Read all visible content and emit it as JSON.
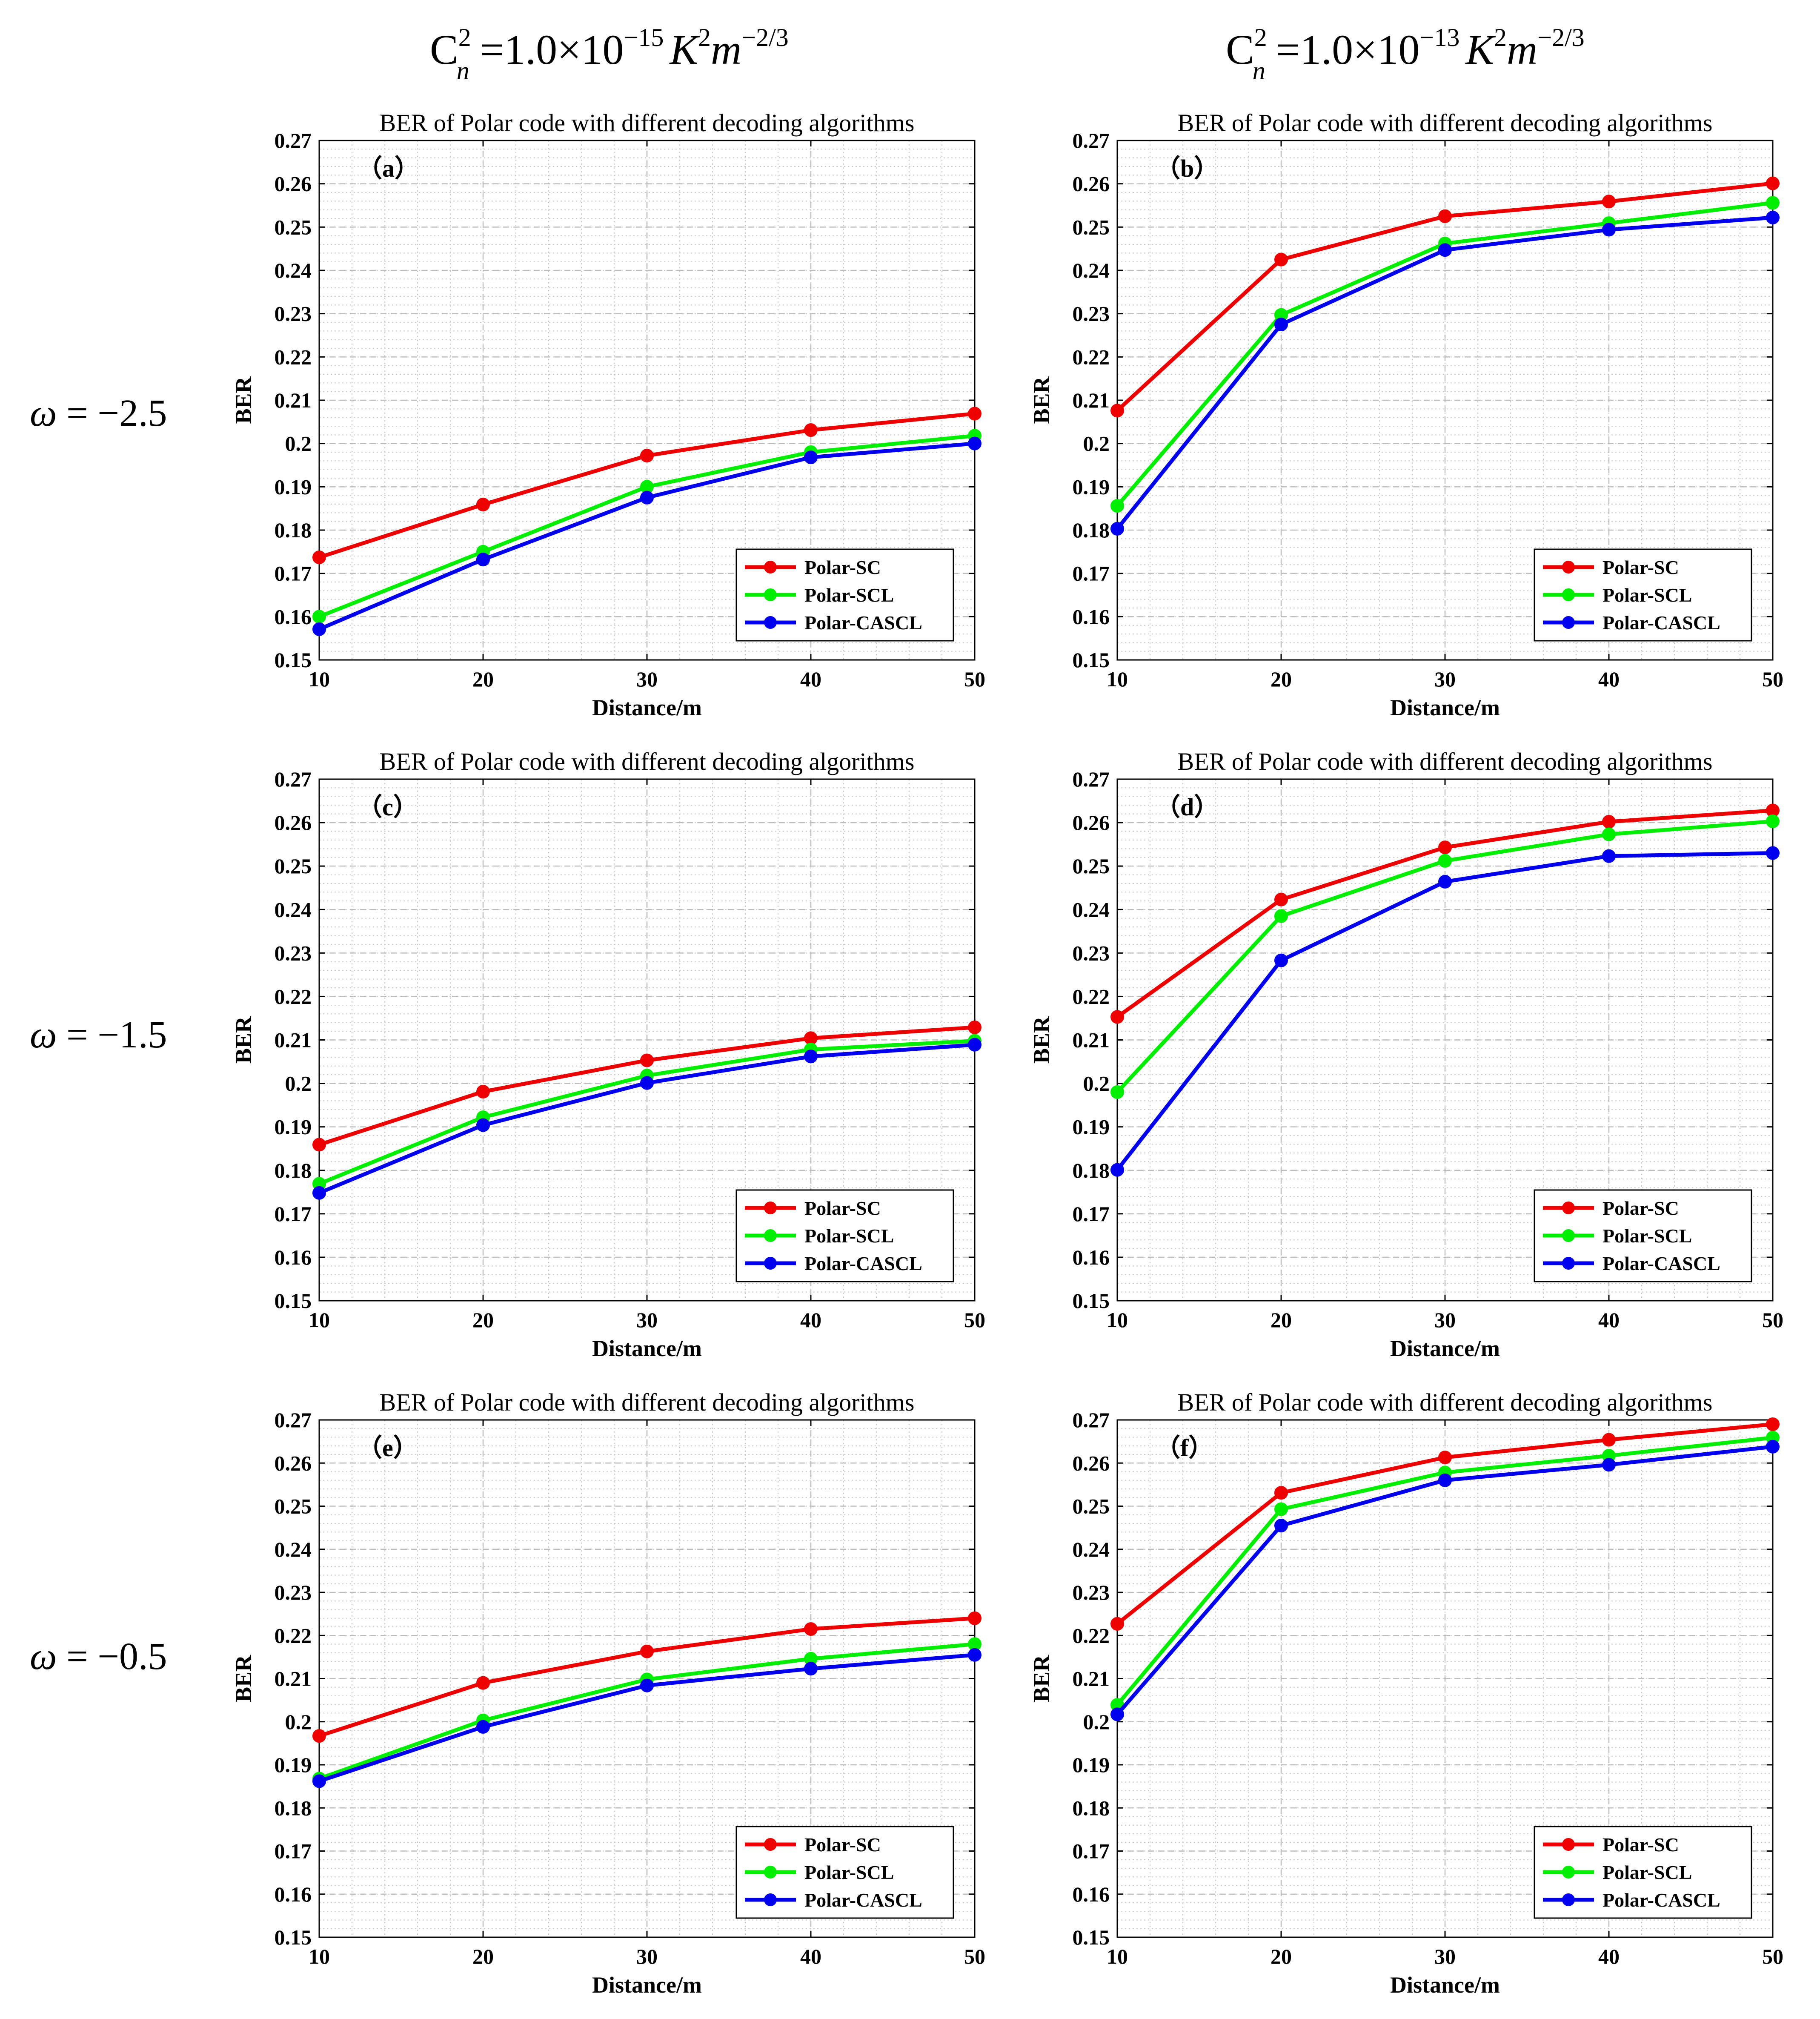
{
  "column_headers": [
    {
      "base": "C",
      "sup": "2",
      "sub": "n",
      "eq": " =1.0×10",
      "exp": "−15",
      "k": "K",
      "k_sup": "2",
      "m": "m",
      "m_sup": "−2/3"
    },
    {
      "base": "C",
      "sup": "2",
      "sub": "n",
      "eq": " =1.0×10",
      "exp": "−13",
      "k": "K",
      "k_sup": "2",
      "m": "m",
      "m_sup": "−2/3"
    }
  ],
  "row_labels": [
    {
      "symbol": "ω",
      "value": " = −2.5"
    },
    {
      "symbol": "ω",
      "value": " = −1.5"
    },
    {
      "symbol": "ω",
      "value": " = −0.5"
    }
  ],
  "colors": {
    "Polar-SC": "#ee0000",
    "Polar-SCL": "#00ee00",
    "Polar-CASCL": "#0000ee",
    "axis": "#000000",
    "grid": "#c8c8c8"
  },
  "chart_data": [
    {
      "type": "line",
      "panel_label": "（a）",
      "title": "BER of Polar code with different decoding algorithms",
      "xlabel": "Distance/m",
      "ylabel": "BER",
      "x": [
        10,
        20,
        30,
        40,
        50
      ],
      "xlim": [
        10,
        50
      ],
      "ylim": [
        0.15,
        0.27
      ],
      "xticks": [
        "10",
        "20",
        "30",
        "40",
        "50"
      ],
      "yticks": [
        "0.15",
        "0.16",
        "0.17",
        "0.18",
        "0.19",
        "0.2",
        "0.21",
        "0.22",
        "0.23",
        "0.24",
        "0.25",
        "0.26",
        "0.27"
      ],
      "legend_position": "bottom-right",
      "series": [
        {
          "name": "Polar-SC",
          "values": [
            0.1737,
            0.1859,
            0.1972,
            0.2031,
            0.2069
          ]
        },
        {
          "name": "Polar-SCL",
          "values": [
            0.16,
            0.175,
            0.19,
            0.198,
            0.2018
          ]
        },
        {
          "name": "Polar-CASCL",
          "values": [
            0.1571,
            0.1732,
            0.1875,
            0.1968,
            0.2
          ]
        }
      ]
    },
    {
      "type": "line",
      "panel_label": "（b）",
      "title": "BER of Polar code with different decoding algorithms",
      "xlabel": "Distance/m",
      "ylabel": "BER",
      "x": [
        10,
        20,
        30,
        40,
        50
      ],
      "xlim": [
        10,
        50
      ],
      "ylim": [
        0.15,
        0.27
      ],
      "xticks": [
        "10",
        "20",
        "30",
        "40",
        "50"
      ],
      "yticks": [
        "0.15",
        "0.16",
        "0.17",
        "0.18",
        "0.19",
        "0.2",
        "0.21",
        "0.22",
        "0.23",
        "0.24",
        "0.25",
        "0.26",
        "0.27"
      ],
      "legend_position": "bottom-right",
      "series": [
        {
          "name": "Polar-SC",
          "values": [
            0.2076,
            0.2425,
            0.2525,
            0.2559,
            0.2601
          ]
        },
        {
          "name": "Polar-SCL",
          "values": [
            0.1856,
            0.2297,
            0.2462,
            0.2509,
            0.2556
          ]
        },
        {
          "name": "Polar-CASCL",
          "values": [
            0.1803,
            0.2275,
            0.2447,
            0.2494,
            0.2522
          ]
        }
      ]
    },
    {
      "type": "line",
      "panel_label": "（c）",
      "title": "BER of Polar code with different decoding algorithms",
      "xlabel": "Distance/m",
      "ylabel": "BER",
      "x": [
        10,
        20,
        30,
        40,
        50
      ],
      "xlim": [
        10,
        50
      ],
      "ylim": [
        0.15,
        0.27
      ],
      "xticks": [
        "10",
        "20",
        "30",
        "40",
        "50"
      ],
      "yticks": [
        "0.15",
        "0.16",
        "0.17",
        "0.18",
        "0.19",
        "0.2",
        "0.21",
        "0.22",
        "0.23",
        "0.24",
        "0.25",
        "0.26",
        "0.27"
      ],
      "legend_position": "bottom-right",
      "series": [
        {
          "name": "Polar-SC",
          "values": [
            0.1859,
            0.1981,
            0.2053,
            0.2104,
            0.2129
          ]
        },
        {
          "name": "Polar-SCL",
          "values": [
            0.1769,
            0.1922,
            0.2018,
            0.2078,
            0.2098
          ]
        },
        {
          "name": "Polar-CASCL",
          "values": [
            0.1748,
            0.1904,
            0.2001,
            0.2062,
            0.2089
          ]
        }
      ]
    },
    {
      "type": "line",
      "panel_label": "（d）",
      "title": "BER of Polar code with different decoding algorithms",
      "xlabel": "Distance/m",
      "ylabel": "BER",
      "x": [
        10,
        20,
        30,
        40,
        50
      ],
      "xlim": [
        10,
        50
      ],
      "ylim": [
        0.15,
        0.27
      ],
      "xticks": [
        "10",
        "20",
        "30",
        "40",
        "50"
      ],
      "yticks": [
        "0.15",
        "0.16",
        "0.17",
        "0.18",
        "0.19",
        "0.2",
        "0.21",
        "0.22",
        "0.23",
        "0.24",
        "0.25",
        "0.26",
        "0.27"
      ],
      "legend_position": "bottom-right",
      "series": [
        {
          "name": "Polar-SC",
          "values": [
            0.2153,
            0.2423,
            0.2543,
            0.2602,
            0.2628
          ]
        },
        {
          "name": "Polar-SCL",
          "values": [
            0.198,
            0.2385,
            0.2512,
            0.2573,
            0.2603
          ]
        },
        {
          "name": "Polar-CASCL",
          "values": [
            0.1801,
            0.2283,
            0.2464,
            0.2523,
            0.253
          ]
        }
      ]
    },
    {
      "type": "line",
      "panel_label": "（e）",
      "title": "BER of Polar code with different decoding algorithms",
      "xlabel": "Distance/m",
      "ylabel": "BER",
      "x": [
        10,
        20,
        30,
        40,
        50
      ],
      "xlim": [
        10,
        50
      ],
      "ylim": [
        0.15,
        0.27
      ],
      "xticks": [
        "10",
        "20",
        "30",
        "40",
        "50"
      ],
      "yticks": [
        "0.15",
        "0.16",
        "0.17",
        "0.18",
        "0.19",
        "0.2",
        "0.21",
        "0.22",
        "0.23",
        "0.24",
        "0.25",
        "0.26",
        "0.27"
      ],
      "legend_position": "bottom-right",
      "series": [
        {
          "name": "Polar-SC",
          "values": [
            0.1967,
            0.209,
            0.2163,
            0.2215,
            0.224
          ]
        },
        {
          "name": "Polar-SCL",
          "values": [
            0.1868,
            0.2003,
            0.2098,
            0.2146,
            0.218
          ]
        },
        {
          "name": "Polar-CASCL",
          "values": [
            0.1862,
            0.1988,
            0.2084,
            0.2123,
            0.2155
          ]
        }
      ]
    },
    {
      "type": "line",
      "panel_label": "（f）",
      "title": "BER of Polar code with different decoding algorithms",
      "xlabel": "Distance/m",
      "ylabel": "BER",
      "x": [
        10,
        20,
        30,
        40,
        50
      ],
      "xlim": [
        10,
        50
      ],
      "ylim": [
        0.15,
        0.27
      ],
      "xticks": [
        "10",
        "20",
        "30",
        "40",
        "50"
      ],
      "yticks": [
        "0.15",
        "0.16",
        "0.17",
        "0.18",
        "0.19",
        "0.2",
        "0.21",
        "0.22",
        "0.23",
        "0.24",
        "0.25",
        "0.26",
        "0.27"
      ],
      "legend_position": "bottom-right",
      "series": [
        {
          "name": "Polar-SC",
          "values": [
            0.2227,
            0.2531,
            0.2613,
            0.2654,
            0.269
          ]
        },
        {
          "name": "Polar-SCL",
          "values": [
            0.2039,
            0.2493,
            0.2578,
            0.2617,
            0.2659
          ]
        },
        {
          "name": "Polar-CASCL",
          "values": [
            0.2017,
            0.2455,
            0.256,
            0.2596,
            0.2638
          ]
        }
      ]
    }
  ]
}
